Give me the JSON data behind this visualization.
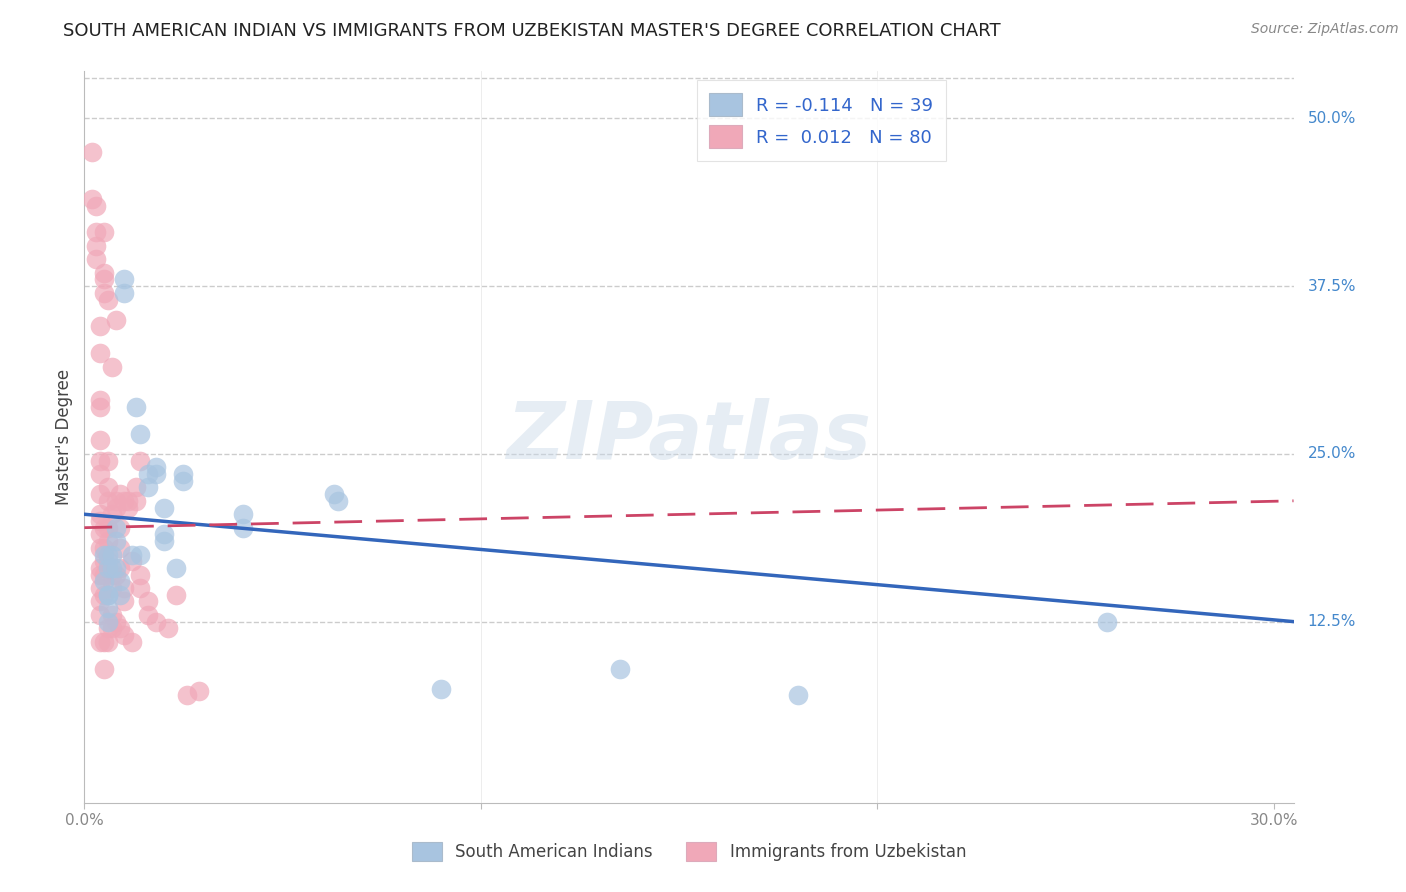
{
  "title": "SOUTH AMERICAN INDIAN VS IMMIGRANTS FROM UZBEKISTAN MASTER'S DEGREE CORRELATION CHART",
  "source": "Source: ZipAtlas.com",
  "ylabel": "Master's Degree",
  "ylabel_right_ticks": [
    "50.0%",
    "37.5%",
    "25.0%",
    "12.5%"
  ],
  "ylabel_right_vals": [
    0.5,
    0.375,
    0.25,
    0.125
  ],
  "ylim": [
    -0.01,
    0.535
  ],
  "xlim": [
    0.0,
    0.305
  ],
  "color_blue": "#a8c4e0",
  "color_pink": "#f0a8b8",
  "color_blue_line": "#3366bb",
  "color_pink_line": "#cc4466",
  "watermark": "ZIPatlas",
  "blue_scatter": [
    [
      0.005,
      0.175
    ],
    [
      0.005,
      0.155
    ],
    [
      0.006,
      0.165
    ],
    [
      0.006,
      0.145
    ],
    [
      0.006,
      0.135
    ],
    [
      0.006,
      0.125
    ],
    [
      0.006,
      0.175
    ],
    [
      0.006,
      0.145
    ],
    [
      0.007,
      0.175
    ],
    [
      0.007,
      0.165
    ],
    [
      0.008,
      0.195
    ],
    [
      0.008,
      0.185
    ],
    [
      0.008,
      0.165
    ],
    [
      0.009,
      0.155
    ],
    [
      0.009,
      0.145
    ],
    [
      0.01,
      0.38
    ],
    [
      0.01,
      0.37
    ],
    [
      0.012,
      0.175
    ],
    [
      0.013,
      0.285
    ],
    [
      0.014,
      0.265
    ],
    [
      0.014,
      0.175
    ],
    [
      0.016,
      0.235
    ],
    [
      0.016,
      0.225
    ],
    [
      0.018,
      0.24
    ],
    [
      0.018,
      0.235
    ],
    [
      0.02,
      0.21
    ],
    [
      0.02,
      0.19
    ],
    [
      0.02,
      0.185
    ],
    [
      0.023,
      0.165
    ],
    [
      0.025,
      0.235
    ],
    [
      0.025,
      0.23
    ],
    [
      0.04,
      0.205
    ],
    [
      0.04,
      0.195
    ],
    [
      0.063,
      0.22
    ],
    [
      0.064,
      0.215
    ],
    [
      0.09,
      0.075
    ],
    [
      0.135,
      0.09
    ],
    [
      0.18,
      0.07
    ],
    [
      0.258,
      0.125
    ]
  ],
  "pink_scatter": [
    [
      0.002,
      0.475
    ],
    [
      0.002,
      0.44
    ],
    [
      0.003,
      0.415
    ],
    [
      0.003,
      0.405
    ],
    [
      0.003,
      0.395
    ],
    [
      0.003,
      0.435
    ],
    [
      0.004,
      0.345
    ],
    [
      0.004,
      0.325
    ],
    [
      0.004,
      0.29
    ],
    [
      0.004,
      0.285
    ],
    [
      0.004,
      0.26
    ],
    [
      0.004,
      0.245
    ],
    [
      0.004,
      0.235
    ],
    [
      0.004,
      0.22
    ],
    [
      0.004,
      0.205
    ],
    [
      0.004,
      0.2
    ],
    [
      0.004,
      0.19
    ],
    [
      0.004,
      0.18
    ],
    [
      0.004,
      0.165
    ],
    [
      0.004,
      0.16
    ],
    [
      0.004,
      0.15
    ],
    [
      0.004,
      0.14
    ],
    [
      0.004,
      0.13
    ],
    [
      0.004,
      0.11
    ],
    [
      0.005,
      0.415
    ],
    [
      0.005,
      0.385
    ],
    [
      0.005,
      0.38
    ],
    [
      0.005,
      0.37
    ],
    [
      0.005,
      0.195
    ],
    [
      0.005,
      0.18
    ],
    [
      0.005,
      0.17
    ],
    [
      0.005,
      0.16
    ],
    [
      0.005,
      0.145
    ],
    [
      0.005,
      0.11
    ],
    [
      0.005,
      0.09
    ],
    [
      0.006,
      0.365
    ],
    [
      0.006,
      0.245
    ],
    [
      0.006,
      0.225
    ],
    [
      0.006,
      0.215
    ],
    [
      0.006,
      0.195
    ],
    [
      0.006,
      0.185
    ],
    [
      0.006,
      0.17
    ],
    [
      0.006,
      0.12
    ],
    [
      0.006,
      0.11
    ],
    [
      0.007,
      0.315
    ],
    [
      0.007,
      0.205
    ],
    [
      0.007,
      0.16
    ],
    [
      0.007,
      0.15
    ],
    [
      0.007,
      0.13
    ],
    [
      0.007,
      0.12
    ],
    [
      0.008,
      0.35
    ],
    [
      0.008,
      0.215
    ],
    [
      0.008,
      0.21
    ],
    [
      0.008,
      0.16
    ],
    [
      0.008,
      0.125
    ],
    [
      0.009,
      0.22
    ],
    [
      0.009,
      0.195
    ],
    [
      0.009,
      0.18
    ],
    [
      0.009,
      0.165
    ],
    [
      0.009,
      0.12
    ],
    [
      0.01,
      0.215
    ],
    [
      0.01,
      0.15
    ],
    [
      0.01,
      0.14
    ],
    [
      0.01,
      0.115
    ],
    [
      0.011,
      0.215
    ],
    [
      0.011,
      0.21
    ],
    [
      0.012,
      0.17
    ],
    [
      0.012,
      0.11
    ],
    [
      0.013,
      0.225
    ],
    [
      0.013,
      0.215
    ],
    [
      0.014,
      0.245
    ],
    [
      0.014,
      0.16
    ],
    [
      0.014,
      0.15
    ],
    [
      0.016,
      0.14
    ],
    [
      0.016,
      0.13
    ],
    [
      0.018,
      0.125
    ],
    [
      0.021,
      0.12
    ],
    [
      0.023,
      0.145
    ],
    [
      0.026,
      0.07
    ],
    [
      0.029,
      0.073
    ]
  ],
  "blue_line_x": [
    0.0,
    0.305
  ],
  "blue_line_y": [
    0.205,
    0.125
  ],
  "pink_line_x": [
    0.0,
    0.305
  ],
  "pink_line_y": [
    0.195,
    0.215
  ],
  "grid_color": "#cccccc",
  "background_color": "#ffffff",
  "title_fontsize": 13,
  "source_fontsize": 10,
  "tick_fontsize": 11,
  "ylabel_fontsize": 12
}
